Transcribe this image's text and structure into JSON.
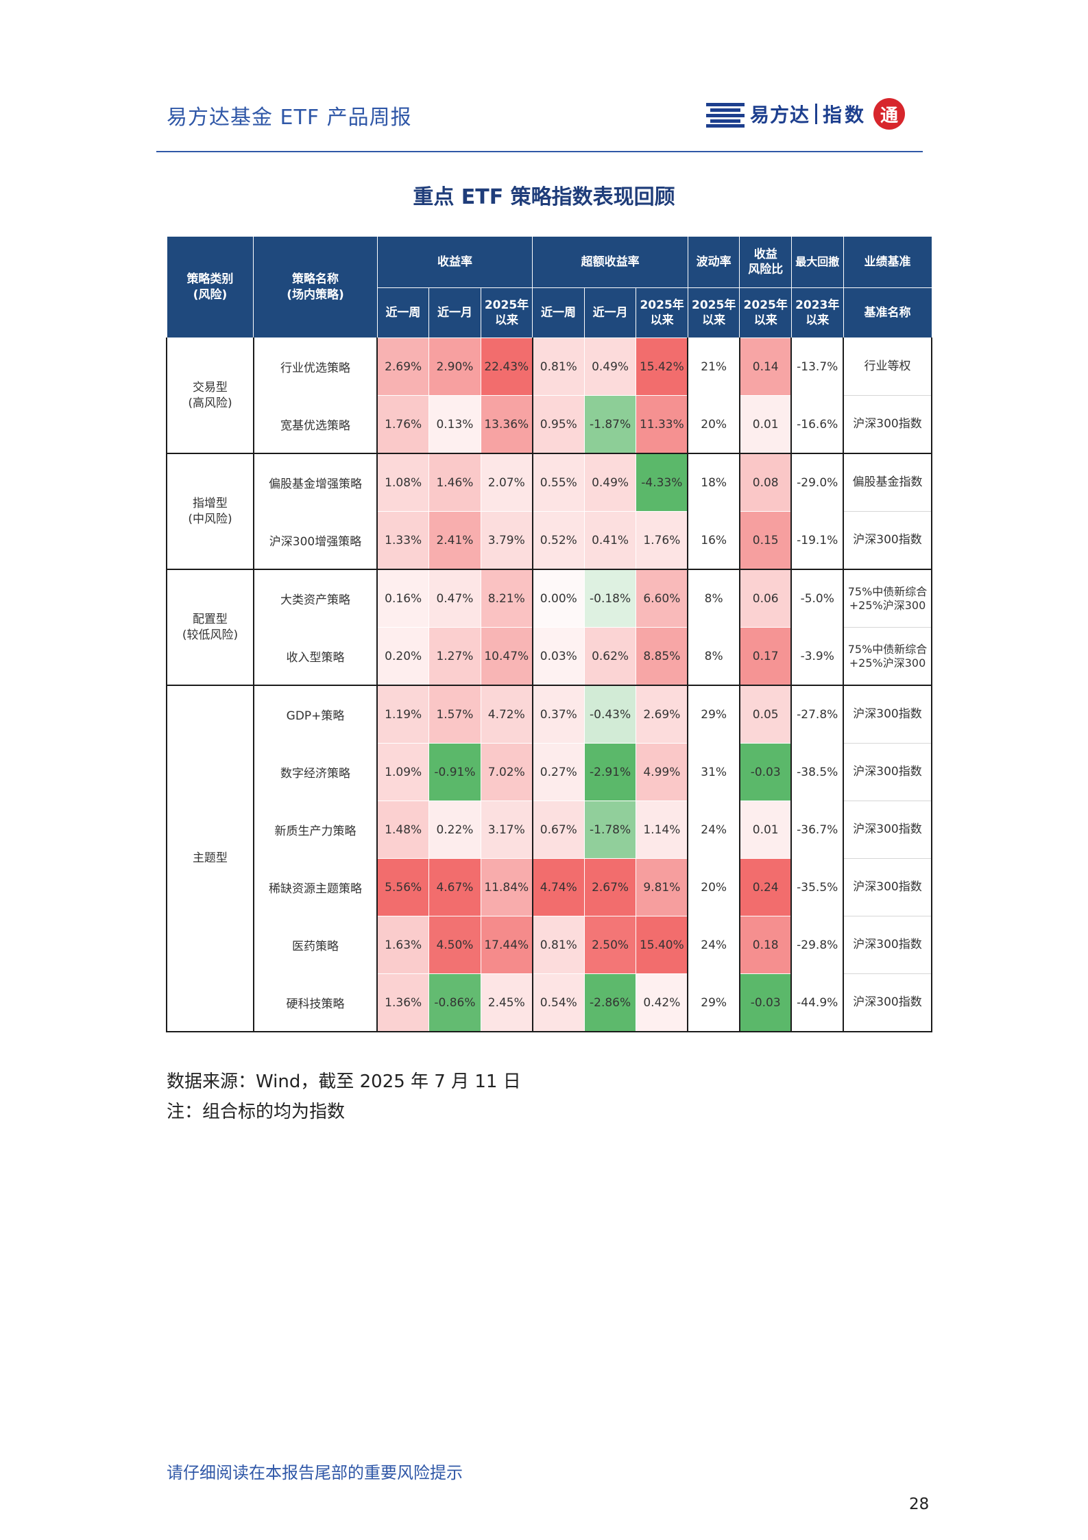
{
  "header": {
    "title": "易方达基金 ETF 产品周报",
    "logo_name": "易方达",
    "logo_sub": "指数",
    "logo_seal": "通"
  },
  "table_title": "重点 ETF 策略指数表现回顾",
  "columns": {
    "category": "策略类别",
    "category_sub": "(风险)",
    "name": "策略名称",
    "name_sub": "(场内策略)",
    "return_group": "收益率",
    "excess_group": "超额收益率",
    "volatility": "波动率",
    "ratio_line1": "收益",
    "ratio_line2": "风险比",
    "max_dd": "最大回撤",
    "benchmark": "业绩基准",
    "week": "近一周",
    "month": "近一月",
    "ytd_line1": "2025年",
    "ytd_line2": "以来",
    "since2023_line1": "2023年",
    "since2023_line2": "以来",
    "bench_name": "基准名称"
  },
  "groups": [
    {
      "category": "交易型",
      "risk": "(高风险)",
      "rows": [
        {
          "name": "行业优选策略",
          "r_week": "2.69%",
          "r_month": "2.90%",
          "r_ytd": "22.43%",
          "e_week": "0.81%",
          "e_month": "0.49%",
          "e_ytd": "15.42%",
          "vol": "21%",
          "ratio": "0.14",
          "dd": "-13.7%",
          "bench": "行业等权"
        },
        {
          "name": "宽基优选策略",
          "r_week": "1.76%",
          "r_month": "0.13%",
          "r_ytd": "13.36%",
          "e_week": "0.95%",
          "e_month": "-1.87%",
          "e_ytd": "11.33%",
          "vol": "20%",
          "ratio": "0.01",
          "dd": "-16.6%",
          "bench": "沪深300指数"
        }
      ]
    },
    {
      "category": "指增型",
      "risk": "(中风险)",
      "rows": [
        {
          "name": "偏股基金增强策略",
          "r_week": "1.08%",
          "r_month": "1.46%",
          "r_ytd": "2.07%",
          "e_week": "0.55%",
          "e_month": "0.49%",
          "e_ytd": "-4.33%",
          "vol": "18%",
          "ratio": "0.08",
          "dd": "-29.0%",
          "bench": "偏股基金指数"
        },
        {
          "name": "沪深300增强策略",
          "r_week": "1.33%",
          "r_month": "2.41%",
          "r_ytd": "3.79%",
          "e_week": "0.52%",
          "e_month": "0.41%",
          "e_ytd": "1.76%",
          "vol": "16%",
          "ratio": "0.15",
          "dd": "-19.1%",
          "bench": "沪深300指数"
        }
      ]
    },
    {
      "category": "配置型",
      "risk": "(较低风险)",
      "rows": [
        {
          "name": "大类资产策略",
          "r_week": "0.16%",
          "r_month": "0.47%",
          "r_ytd": "8.21%",
          "e_week": "0.00%",
          "e_month": "-0.18%",
          "e_ytd": "6.60%",
          "vol": "8%",
          "ratio": "0.06",
          "dd": "-5.0%",
          "bench": "75%中债新综合",
          "bench2": "+25%沪深300"
        },
        {
          "name": "收入型策略",
          "r_week": "0.20%",
          "r_month": "1.27%",
          "r_ytd": "10.47%",
          "e_week": "0.03%",
          "e_month": "0.62%",
          "e_ytd": "8.85%",
          "vol": "8%",
          "ratio": "0.17",
          "dd": "-3.9%",
          "bench": "75%中债新综合",
          "bench2": "+25%沪深300"
        }
      ]
    },
    {
      "category": "主题型",
      "risk": "",
      "rows": [
        {
          "name": "GDP+策略",
          "r_week": "1.19%",
          "r_month": "1.57%",
          "r_ytd": "4.72%",
          "e_week": "0.37%",
          "e_month": "-0.43%",
          "e_ytd": "2.69%",
          "vol": "29%",
          "ratio": "0.05",
          "dd": "-27.8%",
          "bench": "沪深300指数"
        },
        {
          "name": "数字经济策略",
          "r_week": "1.09%",
          "r_month": "-0.91%",
          "r_ytd": "7.02%",
          "e_week": "0.27%",
          "e_month": "-2.91%",
          "e_ytd": "4.99%",
          "vol": "31%",
          "ratio": "-0.03",
          "dd": "-38.5%",
          "bench": "沪深300指数"
        },
        {
          "name": "新质生产力策略",
          "r_week": "1.48%",
          "r_month": "0.22%",
          "r_ytd": "3.17%",
          "e_week": "0.67%",
          "e_month": "-1.78%",
          "e_ytd": "1.14%",
          "vol": "24%",
          "ratio": "0.01",
          "dd": "-36.7%",
          "bench": "沪深300指数"
        },
        {
          "name": "稀缺资源主题策略",
          "r_week": "5.56%",
          "r_month": "4.67%",
          "r_ytd": "11.84%",
          "e_week": "4.74%",
          "e_month": "2.67%",
          "e_ytd": "9.81%",
          "vol": "20%",
          "ratio": "0.24",
          "dd": "-35.5%",
          "bench": "沪深300指数"
        },
        {
          "name": "医药策略",
          "r_week": "1.63%",
          "r_month": "4.50%",
          "r_ytd": "17.44%",
          "e_week": "0.81%",
          "e_month": "2.50%",
          "e_ytd": "15.40%",
          "vol": "24%",
          "ratio": "0.18",
          "dd": "-29.8%",
          "bench": "沪深300指数"
        },
        {
          "name": "硬科技策略",
          "r_week": "1.36%",
          "r_month": "-0.86%",
          "r_ytd": "2.45%",
          "e_week": "0.54%",
          "e_month": "-2.86%",
          "e_ytd": "0.42%",
          "vol": "29%",
          "ratio": "-0.03",
          "dd": "-44.9%",
          "bench": "沪深300指数"
        }
      ]
    }
  ],
  "colors": {
    "header_bg": "#1f497d",
    "pos_max": "#f26d6d",
    "neg_max": "#5bb86a",
    "neutral": "#ffffff",
    "title_blue": "#2f57a7"
  },
  "source_note": "数据来源：Wind，截至 2025 年 7 月 11 日",
  "note2": "注：组合标的均为指数",
  "footer": "请仔细阅读在本报告尾部的重要风险提示",
  "page_number": "28"
}
